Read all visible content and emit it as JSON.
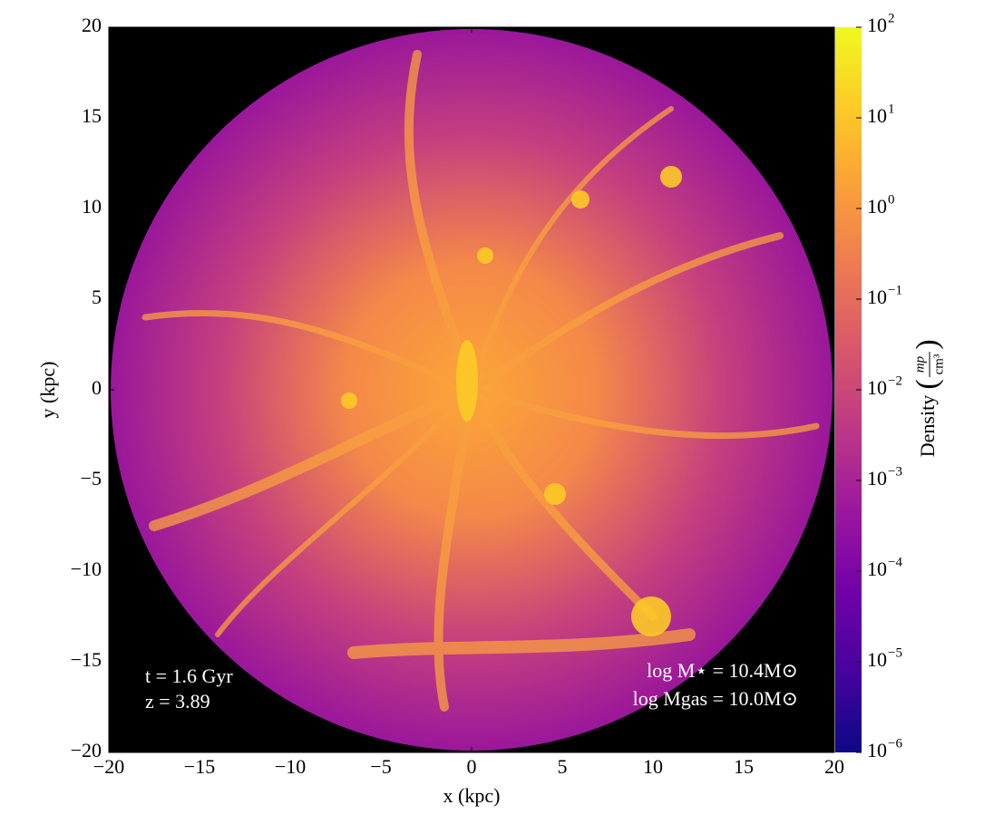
{
  "chart_data": {
    "type": "image",
    "xlabel": "x  (kpc)",
    "ylabel": "y  (kpc)",
    "xlim": [
      -20,
      20
    ],
    "ylim": [
      -20,
      20
    ],
    "xticks": [
      {
        "value": -20,
        "label": "−20"
      },
      {
        "value": -15,
        "label": "−15"
      },
      {
        "value": -10,
        "label": "−10"
      },
      {
        "value": -5,
        "label": "−5"
      },
      0,
      5,
      10,
      15,
      20
    ],
    "yticks": [
      {
        "value": -20,
        "label": "−20"
      },
      {
        "value": -15,
        "label": "−15"
      },
      {
        "value": -10,
        "label": "−10"
      },
      {
        "value": -5,
        "label": "−5"
      },
      0,
      5,
      10,
      15,
      20
    ],
    "colormap": "plasma",
    "colormap_colors": [
      "#0d0887",
      "#46039f",
      "#7201a8",
      "#9c179e",
      "#bd3786",
      "#d8576b",
      "#ed7953",
      "#fb9f3a",
      "#fdca26",
      "#f0f921"
    ],
    "colorbar_scale": "log",
    "clim": [
      1e-06,
      100
    ],
    "colorbar_ticks": [
      {
        "value": 1e-06,
        "label": "10",
        "exponent": "−6"
      },
      {
        "value": 1e-05,
        "label": "10",
        "exponent": "−5"
      },
      {
        "value": 0.0001,
        "label": "10",
        "exponent": "−4"
      },
      {
        "value": 0.001,
        "label": "10",
        "exponent": "−3"
      },
      {
        "value": 0.01,
        "label": "10",
        "exponent": "−2"
      },
      {
        "value": 0.1,
        "label": "10",
        "exponent": "−1"
      },
      {
        "value": 1,
        "label": "10",
        "exponent": "0"
      },
      {
        "value": 10,
        "label": "10",
        "exponent": "1"
      },
      {
        "value": 100,
        "label": "10",
        "exponent": "2"
      }
    ],
    "colorbar_label": "Density",
    "colorbar_unit_numerator": "mp",
    "colorbar_unit_denominator": "cm³",
    "annotations_left": [
      "t = 1.6 Gyr",
      "z = 3.89"
    ],
    "annotations_right": [
      "log M⋆ = 10.4M⊙",
      "log Mgas = 10.0M⊙"
    ]
  }
}
